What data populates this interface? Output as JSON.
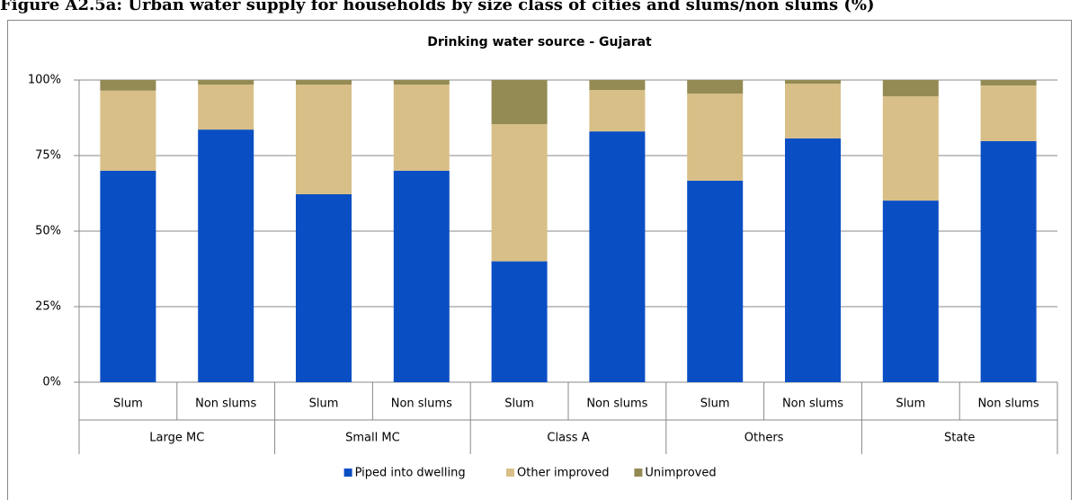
{
  "caption": "Figure A2.5a: Urban water supply for households by size class of cities and slums/non slums (%)",
  "chart_data": {
    "type": "stacked_bar",
    "title": "Drinking water source - Gujarat",
    "categories": [
      "Slum",
      "Non slums",
      "Slum",
      "Non slums",
      "Slum",
      "Non slums",
      "Slum",
      "Non slums",
      "Slum",
      "Non slums"
    ],
    "groups": [
      "Large MC",
      "Small MC",
      "Class A",
      "Others",
      "State"
    ],
    "series": [
      {
        "name": "Piped into dwelling",
        "color": "#0a4ec4",
        "values": [
          70,
          83.6,
          62.2,
          70,
          40,
          83,
          66.7,
          80.7,
          60.1,
          79.8
        ]
      },
      {
        "name": "Other improved",
        "color": "#d8bf87",
        "values": [
          26.5,
          14.9,
          36.3,
          28.5,
          45.4,
          13.7,
          28.8,
          18.1,
          34.5,
          18.4
        ]
      },
      {
        "name": "Unimproved",
        "color": "#948a54",
        "values": [
          3.5,
          1.5,
          1.5,
          1.5,
          14.6,
          3.3,
          4.5,
          1.2,
          5.4,
          1.8
        ]
      }
    ],
    "ylim": [
      0,
      100
    ],
    "yticks": [
      {
        "value": 0,
        "label": "0%"
      },
      {
        "value": 25,
        "label": "25%"
      },
      {
        "value": 50,
        "label": "50%"
      },
      {
        "value": 75,
        "label": "75%"
      },
      {
        "value": 100,
        "label": "100%"
      }
    ],
    "grid": true,
    "legend": "bottom"
  }
}
